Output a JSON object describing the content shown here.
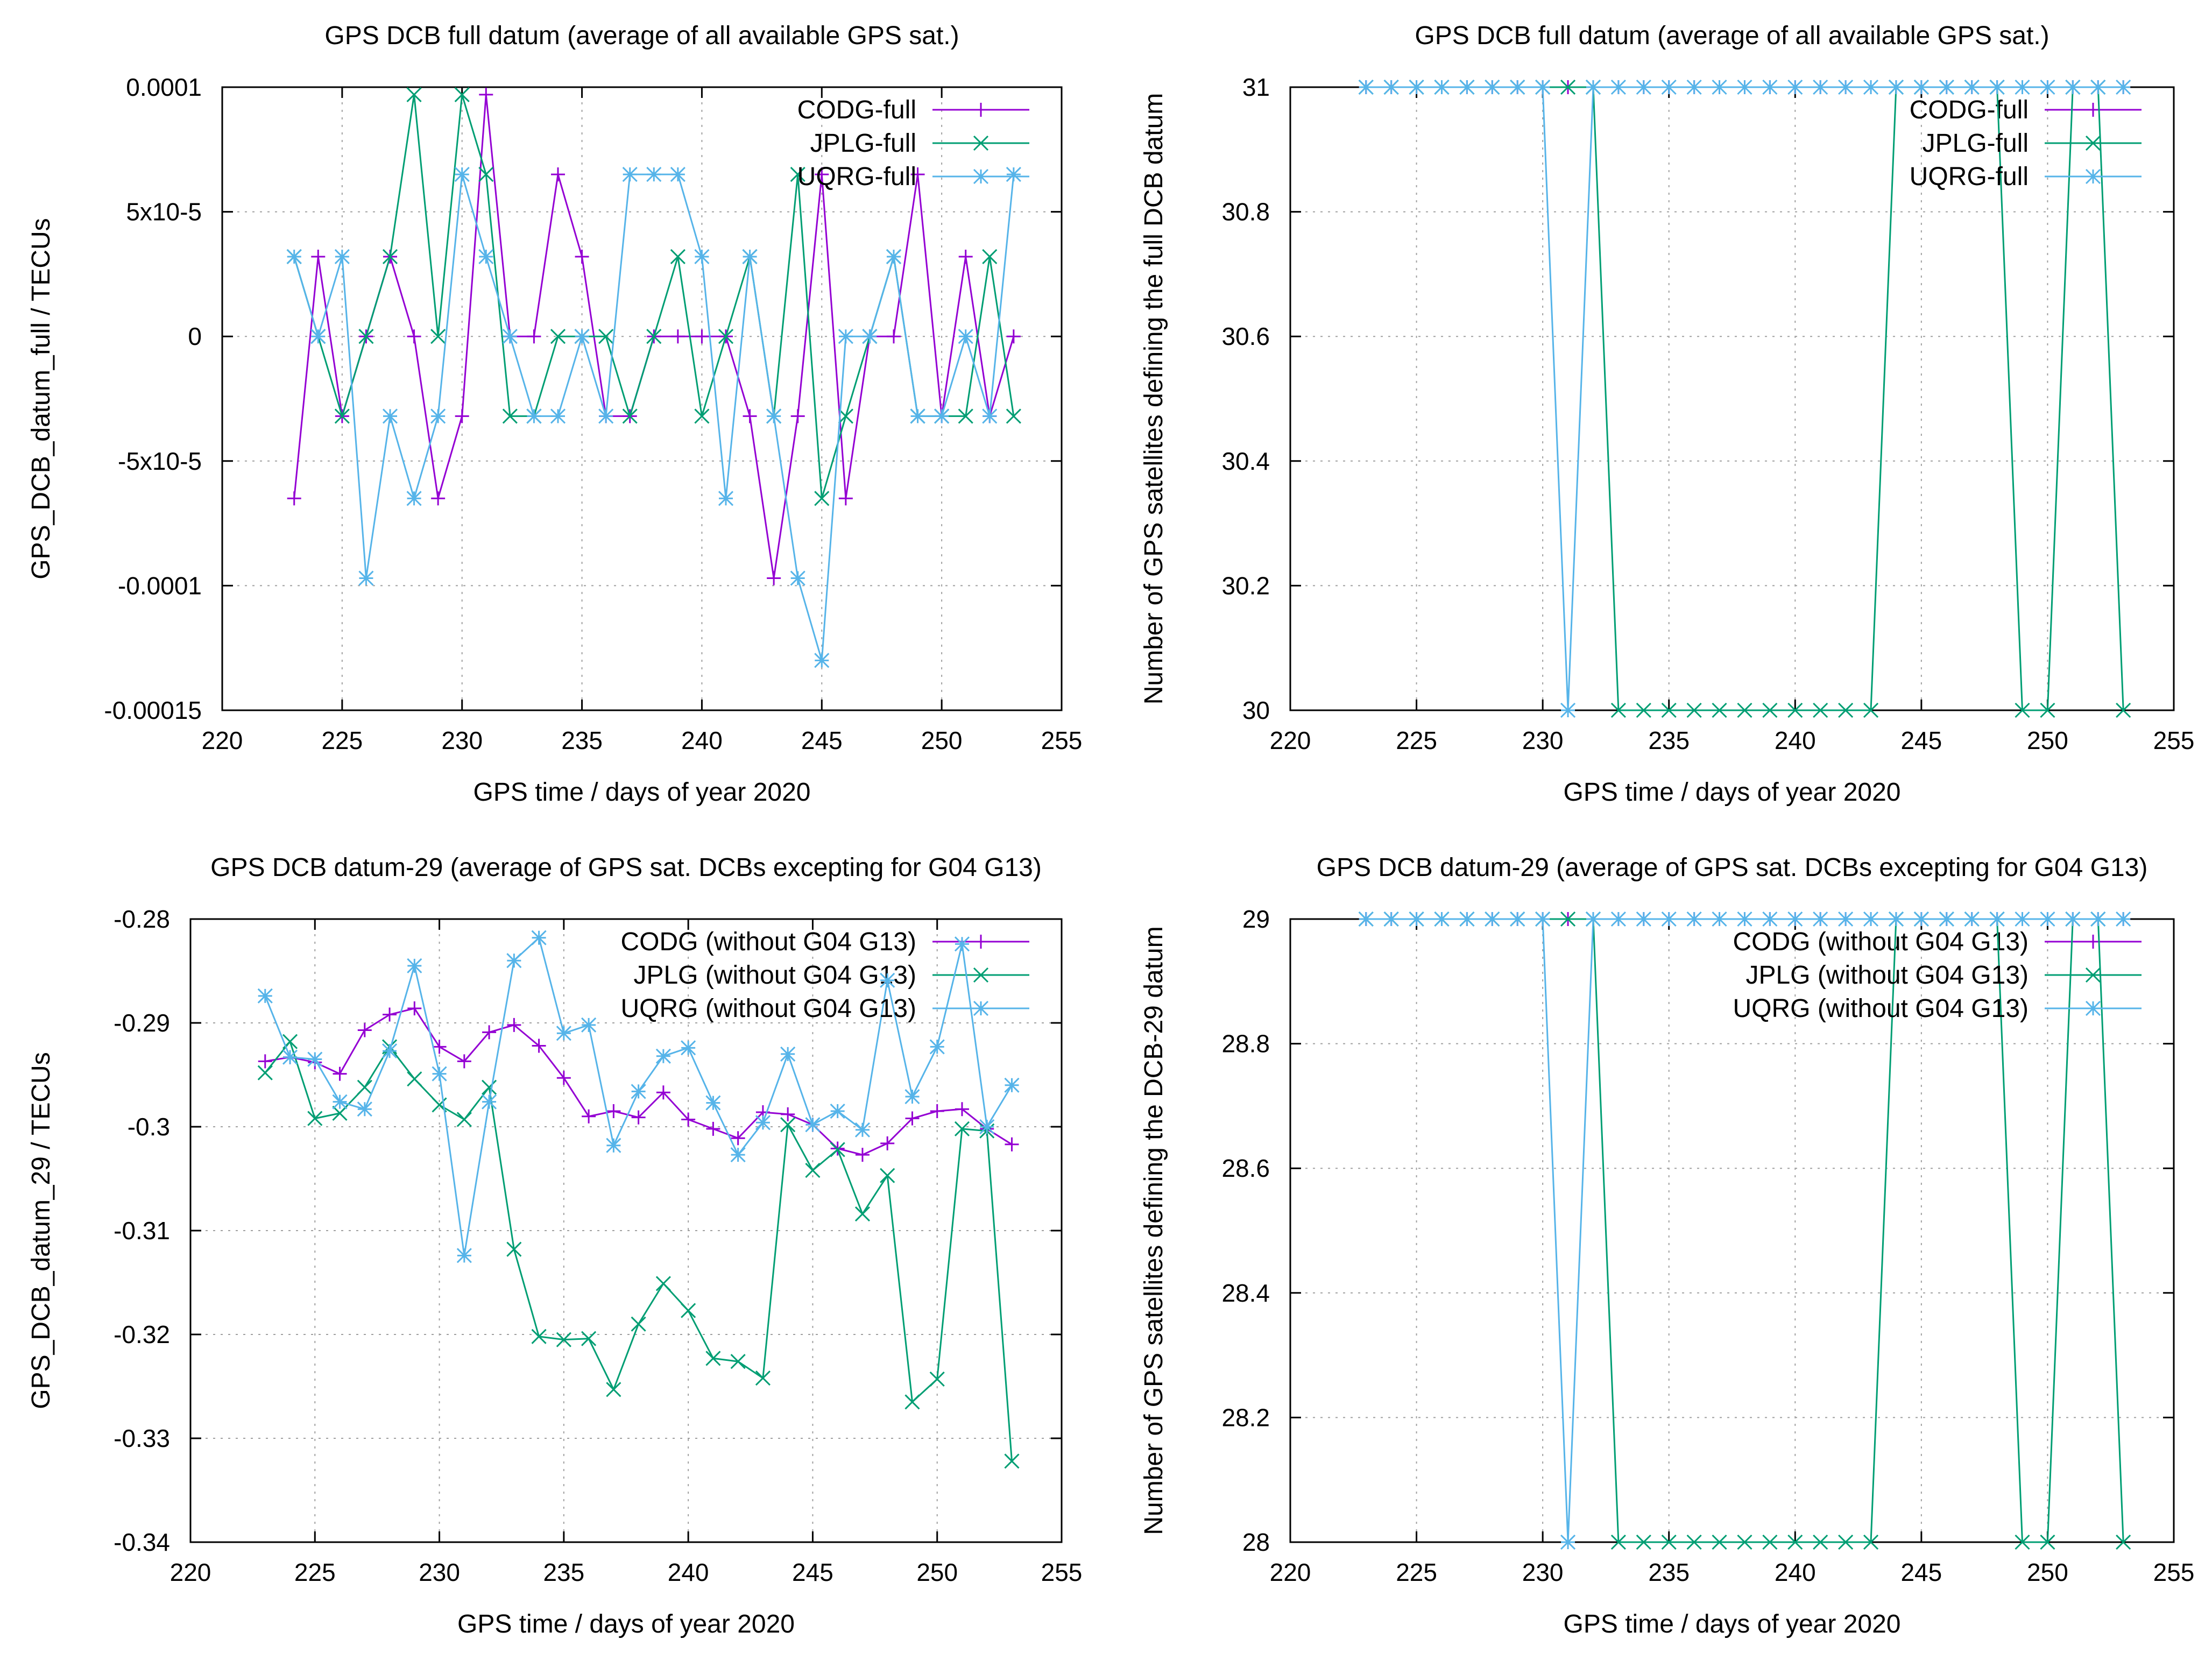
{
  "chart_data": [
    {
      "type": "line",
      "title": "GPS DCB full datum (average of all available GPS sat.)",
      "xlabel": "GPS time / days of year 2020",
      "ylabel": "GPS_DCB_datum_full / TECUs",
      "xlim": [
        220,
        255
      ],
      "ylim": [
        -0.00015,
        0.0001
      ],
      "xticks": [
        220,
        225,
        230,
        235,
        240,
        245,
        250,
        255
      ],
      "xtick_labels": [
        "220",
        "225",
        "230",
        "235",
        "240",
        "245",
        "250",
        "255"
      ],
      "yticks": [
        -0.00015,
        -0.0001,
        -5e-05,
        0,
        5e-05,
        0.0001
      ],
      "ytick_labels": [
        "-0.00015",
        "-0.0001",
        "-5x10-5",
        "0",
        "5x10-5",
        "0.0001"
      ],
      "legend_position": "top-right",
      "x": [
        223,
        224,
        225,
        226,
        227,
        228,
        229,
        230,
        231,
        232,
        233,
        234,
        235,
        236,
        237,
        238,
        239,
        240,
        241,
        242,
        243,
        244,
        245,
        246,
        247,
        248,
        249,
        250,
        251,
        252,
        253
      ],
      "series": [
        {
          "name": "CODG-full",
          "color": "#9400d3",
          "marker": "plus",
          "values": [
            -6.5e-05,
            3.2e-05,
            -3.2e-05,
            0,
            3.2e-05,
            0,
            -6.5e-05,
            -3.2e-05,
            9.7e-05,
            0,
            0,
            6.5e-05,
            3.2e-05,
            -3.2e-05,
            -3.2e-05,
            0,
            0,
            0,
            0,
            -3.2e-05,
            -9.7e-05,
            -3.2e-05,
            6.5e-05,
            -6.5e-05,
            0,
            0,
            6.5e-05,
            -3.2e-05,
            3.2e-05,
            -3.2e-05,
            0
          ]
        },
        {
          "name": "JPLG-full",
          "color": "#009e73",
          "marker": "cross",
          "values": [
            3.2e-05,
            0,
            -3.2e-05,
            0,
            3.2e-05,
            9.7e-05,
            0,
            9.7e-05,
            6.5e-05,
            -3.2e-05,
            -3.2e-05,
            0,
            0,
            0,
            -3.2e-05,
            0,
            3.2e-05,
            -3.2e-05,
            0,
            3.2e-05,
            -3.2e-05,
            6.5e-05,
            -6.5e-05,
            -3.2e-05,
            0,
            3.2e-05,
            -3.2e-05,
            -3.2e-05,
            -3.2e-05,
            3.2e-05,
            -3.2e-05
          ]
        },
        {
          "name": "UQRG-full",
          "color": "#56b4e9",
          "marker": "star",
          "values": [
            3.2e-05,
            0,
            3.2e-05,
            -9.7e-05,
            -3.2e-05,
            -6.5e-05,
            -3.2e-05,
            6.5e-05,
            3.2e-05,
            0,
            -3.2e-05,
            -3.2e-05,
            0,
            -3.2e-05,
            6.5e-05,
            6.5e-05,
            6.5e-05,
            3.2e-05,
            -6.5e-05,
            3.2e-05,
            -3.2e-05,
            -9.7e-05,
            -0.00013,
            0,
            0,
            3.2e-05,
            -3.2e-05,
            -3.2e-05,
            0,
            -3.2e-05,
            6.5e-05
          ]
        }
      ]
    },
    {
      "type": "line",
      "title": "GPS DCB full datum (average of all available GPS sat.)",
      "xlabel": "GPS time / days of year 2020",
      "ylabel": "Number of GPS satellites defining the full DCB datum",
      "xlim": [
        220,
        255
      ],
      "ylim": [
        30,
        31
      ],
      "xticks": [
        220,
        225,
        230,
        235,
        240,
        245,
        250,
        255
      ],
      "xtick_labels": [
        "220",
        "225",
        "230",
        "235",
        "240",
        "245",
        "250",
        "255"
      ],
      "yticks": [
        30,
        30.2,
        30.4,
        30.6,
        30.8,
        31
      ],
      "ytick_labels": [
        "30",
        "30.2",
        "30.4",
        "30.6",
        "30.8",
        "31"
      ],
      "legend_position": "top-right",
      "x": [
        223,
        224,
        225,
        226,
        227,
        228,
        229,
        230,
        231,
        232,
        233,
        234,
        235,
        236,
        237,
        238,
        239,
        240,
        241,
        242,
        243,
        244,
        245,
        246,
        247,
        248,
        249,
        250,
        251,
        252,
        253
      ],
      "series": [
        {
          "name": "CODG-full",
          "color": "#9400d3",
          "marker": "plus",
          "values": [
            31,
            31,
            31,
            31,
            31,
            31,
            31,
            31,
            31,
            31,
            31,
            31,
            31,
            31,
            31,
            31,
            31,
            31,
            31,
            31,
            31,
            31,
            31,
            31,
            31,
            31,
            31,
            31,
            31,
            31,
            31
          ]
        },
        {
          "name": "JPLG-full",
          "color": "#009e73",
          "marker": "cross",
          "values": [
            31,
            31,
            31,
            31,
            31,
            31,
            31,
            31,
            31,
            31,
            30,
            30,
            30,
            30,
            30,
            30,
            30,
            30,
            30,
            30,
            30,
            31,
            31,
            31,
            31,
            31,
            30,
            30,
            31,
            31,
            30
          ]
        },
        {
          "name": "UQRG-full",
          "color": "#56b4e9",
          "marker": "star",
          "values": [
            31,
            31,
            31,
            31,
            31,
            31,
            31,
            31,
            30,
            31,
            31,
            31,
            31,
            31,
            31,
            31,
            31,
            31,
            31,
            31,
            31,
            31,
            31,
            31,
            31,
            31,
            31,
            31,
            31,
            31,
            31
          ]
        }
      ]
    },
    {
      "type": "line",
      "title": "GPS DCB datum-29 (average of GPS sat. DCBs excepting for G04   G13)",
      "xlabel": "GPS time / days of year 2020",
      "ylabel": "GPS_DCB_datum_29 / TECUs",
      "xlim": [
        220,
        255
      ],
      "ylim": [
        -0.34,
        -0.28
      ],
      "xticks": [
        220,
        225,
        230,
        235,
        240,
        245,
        250,
        255
      ],
      "xtick_labels": [
        "220",
        "225",
        "230",
        "235",
        "240",
        "245",
        "250",
        "255"
      ],
      "yticks": [
        -0.34,
        -0.33,
        -0.32,
        -0.31,
        -0.3,
        -0.29,
        -0.28
      ],
      "ytick_labels": [
        "-0.34",
        "-0.33",
        "-0.32",
        "-0.31",
        "-0.3",
        "-0.29",
        "-0.28"
      ],
      "legend_position": "top-right",
      "x": [
        223,
        224,
        225,
        226,
        227,
        228,
        229,
        230,
        231,
        232,
        233,
        234,
        235,
        236,
        237,
        238,
        239,
        240,
        241,
        242,
        243,
        244,
        245,
        246,
        247,
        248,
        249,
        250,
        251,
        252,
        253
      ],
      "series": [
        {
          "name": "CODG (without G04   G13)",
          "color": "#9400d3",
          "marker": "plus",
          "values": [
            -0.2937,
            -0.2933,
            -0.2938,
            -0.2949,
            -0.2907,
            -0.2892,
            -0.2886,
            -0.2923,
            -0.2937,
            -0.2909,
            -0.2902,
            -0.2922,
            -0.2953,
            -0.299,
            -0.2985,
            -0.2991,
            -0.2967,
            -0.2993,
            -0.3002,
            -0.3011,
            -0.2986,
            -0.2988,
            -0.2998,
            -0.3021,
            -0.3027,
            -0.3016,
            -0.2992,
            -0.2985,
            -0.2983,
            -0.3002,
            -0.3017
          ]
        },
        {
          "name": "JPLG (without G04   G13)",
          "color": "#009e73",
          "marker": "cross",
          "values": [
            -0.2948,
            -0.2918,
            -0.2992,
            -0.2987,
            -0.2962,
            -0.2923,
            -0.2954,
            -0.2979,
            -0.2993,
            -0.2962,
            -0.3118,
            -0.3202,
            -0.3205,
            -0.3204,
            -0.3253,
            -0.319,
            -0.3151,
            -0.3177,
            -0.3223,
            -0.3226,
            -0.3242,
            -0.2998,
            -0.3042,
            -0.3022,
            -0.3084,
            -0.3047,
            -0.3265,
            -0.3243,
            -0.3002,
            -0.3004,
            -0.3322
          ]
        },
        {
          "name": "UQRG (without G04   G13)",
          "color": "#56b4e9",
          "marker": "star",
          "values": [
            -0.2874,
            -0.2933,
            -0.2935,
            -0.2976,
            -0.2983,
            -0.2927,
            -0.2845,
            -0.2949,
            -0.3124,
            -0.2976,
            -0.284,
            -0.2818,
            -0.291,
            -0.2902,
            -0.3018,
            -0.2966,
            -0.2932,
            -0.2924,
            -0.2977,
            -0.3027,
            -0.2996,
            -0.293,
            -0.2998,
            -0.2985,
            -0.3003,
            -0.2859,
            -0.2971,
            -0.2923,
            -0.2824,
            -0.3,
            -0.296
          ]
        }
      ]
    },
    {
      "type": "line",
      "title": "GPS DCB datum-29 (average of GPS sat. DCBs excepting for G04   G13)",
      "xlabel": "GPS time / days of year 2020",
      "ylabel": "Number of GPS satellites defining the DCB-29 datum",
      "xlim": [
        220,
        255
      ],
      "ylim": [
        28,
        29
      ],
      "xticks": [
        220,
        225,
        230,
        235,
        240,
        245,
        250,
        255
      ],
      "xtick_labels": [
        "220",
        "225",
        "230",
        "235",
        "240",
        "245",
        "250",
        "255"
      ],
      "yticks": [
        28,
        28.2,
        28.4,
        28.6,
        28.8,
        29
      ],
      "ytick_labels": [
        "28",
        "28.2",
        "28.4",
        "28.6",
        "28.8",
        "29"
      ],
      "legend_position": "top-right",
      "x": [
        223,
        224,
        225,
        226,
        227,
        228,
        229,
        230,
        231,
        232,
        233,
        234,
        235,
        236,
        237,
        238,
        239,
        240,
        241,
        242,
        243,
        244,
        245,
        246,
        247,
        248,
        249,
        250,
        251,
        252,
        253
      ],
      "series": [
        {
          "name": "CODG (without G04   G13)",
          "color": "#9400d3",
          "marker": "plus",
          "values": [
            29,
            29,
            29,
            29,
            29,
            29,
            29,
            29,
            29,
            29,
            29,
            29,
            29,
            29,
            29,
            29,
            29,
            29,
            29,
            29,
            29,
            29,
            29,
            29,
            29,
            29,
            29,
            29,
            29,
            29,
            29
          ]
        },
        {
          "name": "JPLG (without G04   G13)",
          "color": "#009e73",
          "marker": "cross",
          "values": [
            29,
            29,
            29,
            29,
            29,
            29,
            29,
            29,
            29,
            29,
            28,
            28,
            28,
            28,
            28,
            28,
            28,
            28,
            28,
            28,
            28,
            29,
            29,
            29,
            29,
            29,
            28,
            28,
            29,
            29,
            28
          ]
        },
        {
          "name": "UQRG (without G04   G13)",
          "color": "#56b4e9",
          "marker": "star",
          "values": [
            29,
            29,
            29,
            29,
            29,
            29,
            29,
            29,
            28,
            29,
            29,
            29,
            29,
            29,
            29,
            29,
            29,
            29,
            29,
            29,
            29,
            29,
            29,
            29,
            29,
            29,
            29,
            29,
            29,
            29,
            29
          ]
        }
      ]
    }
  ]
}
